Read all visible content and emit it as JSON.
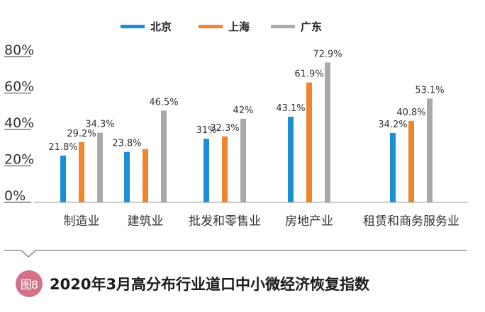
{
  "chart_data": {
    "type": "bar",
    "categories": [
      "制造业",
      "建筑业",
      "批发和零售业",
      "房地产业",
      "租赁和商务服务业"
    ],
    "series": [
      {
        "name": "北京",
        "color": "#1a8fd6",
        "values": [
          21.8,
          23.8,
          31,
          43.1,
          34.2
        ],
        "labels": [
          "21.8%",
          "23.8%",
          "31%",
          "43.1%",
          "34.2%"
        ]
      },
      {
        "name": "上海",
        "color": "#f0862c",
        "values": [
          29.2,
          25.4,
          32.3,
          61.9,
          40.8
        ],
        "labels": [
          "29.2%",
          "",
          "32.3%",
          "61.9%",
          "40.8%"
        ]
      },
      {
        "name": "广东",
        "color": "#a9a9ab",
        "values": [
          34.3,
          46.5,
          42,
          72.9,
          53.1
        ],
        "labels": [
          "34.3%",
          "46.5%",
          "42%",
          "72.9%",
          "53.1%"
        ]
      }
    ],
    "ylim": [
      0,
      80
    ],
    "y_ticks": [
      0,
      20,
      40,
      60,
      80
    ],
    "y_tick_labels": [
      "0%",
      "20%",
      "40%",
      "60%",
      "80%"
    ],
    "legend_position": "top-center",
    "grid": false
  },
  "caption": {
    "badge": "图8",
    "title": "2020年3月高分布行业道口中小微经济恢复指数"
  }
}
